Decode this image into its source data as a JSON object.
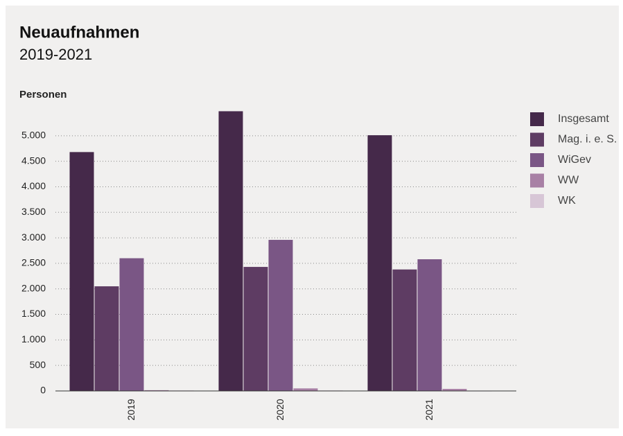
{
  "chart_data": {
    "type": "bar",
    "title": "Neuaufnahmen",
    "subtitle": "2019-2021",
    "y_label": "Personen",
    "categories": [
      "2019",
      "2020",
      "2021"
    ],
    "series": [
      {
        "name": "Insgesamt",
        "color": "#45294a",
        "values": [
          4680,
          5480,
          5010
        ]
      },
      {
        "name": "Mag. i. e. S.",
        "color": "#5e3c63",
        "values": [
          2050,
          2430,
          2380
        ]
      },
      {
        "name": "WiGev",
        "color": "#7a5685",
        "values": [
          2600,
          2960,
          2580
        ]
      },
      {
        "name": "WW",
        "color": "#a880a5",
        "values": [
          15,
          50,
          40
        ]
      },
      {
        "name": "WK",
        "color": "#d7c6d6",
        "values": [
          10,
          10,
          5
        ]
      }
    ],
    "ylim": [
      0,
      5500
    ],
    "yticks": [
      0,
      500,
      {
        "value": 1000,
        "label": "1.000"
      },
      {
        "value": 1500,
        "label": "1.500"
      },
      {
        "value": 2000,
        "label": "2.000"
      },
      {
        "value": 2500,
        "label": "2.500"
      },
      {
        "value": 3000,
        "label": "3.000"
      },
      {
        "value": 3500,
        "label": "3.500"
      },
      {
        "value": 4000,
        "label": "4.000"
      },
      {
        "value": 4500,
        "label": "4.500"
      },
      {
        "value": 5000,
        "label": "5.000"
      }
    ],
    "grid": true,
    "legend": "right"
  }
}
